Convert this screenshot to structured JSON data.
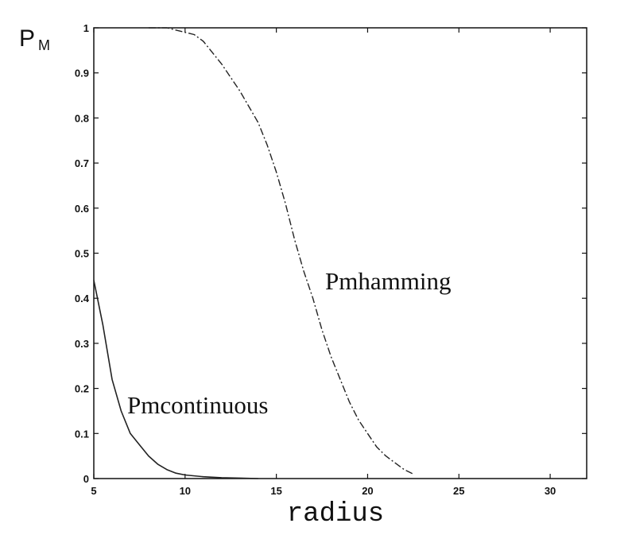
{
  "chart_data": {
    "type": "line",
    "title": "",
    "xlabel": "radius",
    "ylabel": {
      "main": "P",
      "subscript": "M"
    },
    "xlim": [
      5,
      32
    ],
    "ylim": [
      0,
      1
    ],
    "xticks": [
      5,
      10,
      15,
      20,
      25,
      30
    ],
    "yticks": [
      0,
      0.1,
      0.2,
      0.3,
      0.4,
      0.5,
      0.6,
      0.7,
      0.8,
      0.9,
      1
    ],
    "grid": false,
    "series": [
      {
        "name": "Pmcontinuous",
        "style": "solid",
        "x": [
          5,
          5.5,
          6,
          6.5,
          7,
          7.5,
          8,
          8.5,
          9,
          9.5,
          10,
          11,
          12,
          13,
          14
        ],
        "y": [
          0.44,
          0.34,
          0.22,
          0.15,
          0.1,
          0.075,
          0.05,
          0.032,
          0.02,
          0.012,
          0.008,
          0.004,
          0.002,
          0.001,
          0
        ]
      },
      {
        "name": "Pmhamming",
        "style": "dashed",
        "x": [
          8,
          9,
          10,
          10.5,
          11,
          12,
          13,
          14,
          14.5,
          15,
          15.5,
          16,
          16.5,
          17,
          17.5,
          18,
          18.5,
          19,
          19.5,
          20,
          20.5,
          21,
          21.5,
          22,
          22.5
        ],
        "y": [
          1,
          1,
          0.99,
          0.985,
          0.97,
          0.92,
          0.86,
          0.79,
          0.74,
          0.68,
          0.61,
          0.53,
          0.46,
          0.4,
          0.33,
          0.27,
          0.22,
          0.17,
          0.13,
          0.1,
          0.07,
          0.05,
          0.035,
          0.02,
          0.01
        ]
      }
    ],
    "annotations": [
      {
        "text": "Pmcontinuous",
        "series": "Pmcontinuous"
      },
      {
        "text": "Pmhamming",
        "series": "Pmhamming"
      }
    ]
  }
}
